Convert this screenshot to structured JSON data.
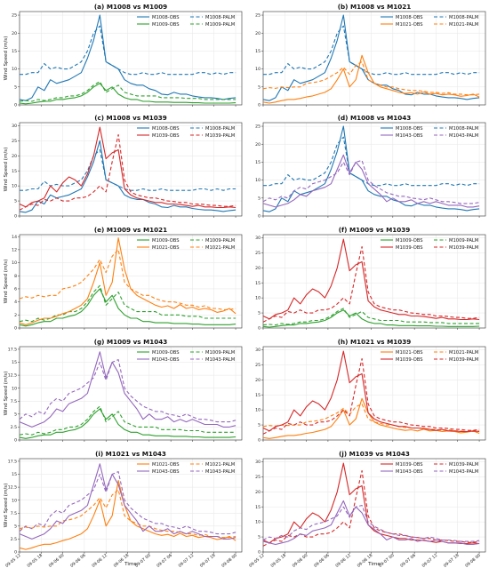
{
  "chart_data": {
    "type": "line",
    "ylabel": "Wind Speed (m/s)",
    "xlabel": "Time",
    "x_ticks": [
      "09-05 12",
      "09-05 18",
      "09-06 00",
      "09-06 06",
      "09-06 12",
      "09-06 18",
      "09-07 00",
      "09-07 06",
      "09-07 12",
      "09-07 18",
      "09-08 00"
    ],
    "grid": true,
    "colors": {
      "M1008": "#1f77b4",
      "M1009": "#2ca02c",
      "M1021": "#ff7f0e",
      "M1039": "#d62728",
      "M1043": "#9467bd"
    },
    "stations": {
      "M1008": {
        "OBS": [
          1.5,
          1.2,
          2,
          5,
          4,
          7,
          6,
          6.5,
          7,
          8,
          9,
          13,
          18,
          25,
          12,
          11,
          10,
          7,
          6,
          5.5,
          5.5,
          4.5,
          4,
          3,
          2.8,
          3.5,
          3,
          3,
          2.5,
          2.2,
          2,
          2,
          1.8,
          1.5,
          1.8,
          2
        ],
        "PALM": [
          8.5,
          8.5,
          9,
          9,
          11.5,
          10,
          10.5,
          10,
          10,
          11,
          12,
          15,
          20,
          22,
          12,
          11,
          10,
          9,
          8.5,
          8.5,
          9,
          8.5,
          8.5,
          9,
          8.5,
          8.5,
          8.5,
          8.5,
          8.5,
          9,
          9,
          8.5,
          9,
          8.5,
          9,
          9
        ]
      },
      "M1009": {
        "OBS": [
          0.5,
          0.3,
          0.5,
          0.8,
          1,
          1,
          1.5,
          1.5,
          1.8,
          2,
          2.5,
          3.5,
          5,
          6,
          4,
          5,
          3,
          2,
          1.5,
          1.5,
          1,
          1,
          0.8,
          0.8,
          0.8,
          0.7,
          0.7,
          0.7,
          0.6,
          0.6,
          0.5,
          0.5,
          0.5,
          0.5,
          0.5,
          0.6
        ],
        "PALM": [
          1,
          1.2,
          1,
          1.5,
          1.2,
          1.5,
          2,
          2,
          2.5,
          2.5,
          3,
          4,
          5.5,
          6.5,
          3.5,
          4.5,
          5.5,
          3.5,
          3,
          2.5,
          2.5,
          2.5,
          2.5,
          2,
          2,
          2,
          2,
          1.8,
          1.8,
          1.8,
          1.5,
          1.5,
          1.5,
          1.5,
          1.5,
          1.5
        ]
      },
      "M1021": {
        "OBS": [
          0.8,
          0.5,
          0.8,
          1.2,
          1.5,
          1.5,
          1.8,
          2.2,
          2.5,
          3,
          3.5,
          4.5,
          7,
          10,
          5,
          7,
          13.8,
          9,
          6,
          5,
          4.5,
          4,
          3.5,
          3.2,
          3.4,
          3,
          3.6,
          3,
          3.2,
          2.8,
          3,
          2.8,
          2.4,
          2.6,
          3,
          2.2
        ],
        "PALM": [
          4.5,
          4.8,
          4.6,
          5,
          4.8,
          5,
          5,
          6,
          6.2,
          6.5,
          7,
          8,
          9,
          10.5,
          8.5,
          11,
          12,
          7,
          6,
          5.5,
          5,
          5,
          4.5,
          4.2,
          4,
          4,
          3.8,
          3.5,
          3.5,
          3.2,
          3.4,
          3,
          3,
          2.8,
          2.8,
          3
        ]
      },
      "M1039": {
        "OBS": [
          4,
          3,
          4.5,
          5,
          6,
          10,
          8,
          11,
          13,
          12,
          10,
          14,
          20,
          29.5,
          19,
          21,
          22,
          9,
          7,
          6,
          5.5,
          5,
          4.5,
          4.5,
          4,
          4,
          3.8,
          3.5,
          3.2,
          3.5,
          3,
          3,
          2.8,
          2.8,
          3,
          2.8
        ],
        "PALM": [
          2,
          3,
          4,
          3.5,
          5.5,
          5,
          6,
          5,
          5,
          6,
          6,
          6.5,
          8,
          10,
          8,
          18,
          27,
          12,
          8,
          7,
          6.5,
          6,
          6,
          5.5,
          5,
          4.8,
          4.5,
          4.5,
          4,
          4,
          3.8,
          3.5,
          3.5,
          3.2,
          3.2,
          3.5
        ]
      },
      "M1043": {
        "OBS": [
          3.5,
          3,
          2.5,
          3,
          3.5,
          4.5,
          6,
          5.5,
          7,
          7.5,
          8,
          9,
          13,
          17,
          12,
          15,
          13,
          9,
          7.5,
          6,
          4,
          5,
          4,
          4,
          4.5,
          3.5,
          4,
          3.5,
          4,
          3.5,
          3,
          3,
          3,
          2.5,
          2.5,
          2.8
        ],
        "PALM": [
          4,
          5,
          4.5,
          5.5,
          5,
          7,
          8,
          7.5,
          9,
          9.5,
          10,
          11,
          12,
          15,
          11.5,
          15,
          15.5,
          10,
          8.5,
          7.5,
          6.5,
          6,
          5.5,
          5.5,
          5,
          4.8,
          4.5,
          5,
          4.5,
          4,
          4,
          3.8,
          3.5,
          3.5,
          3.5,
          3.8
        ]
      }
    },
    "panels": [
      {
        "title": "(a) M1008 vs M1009",
        "pair": [
          "M1008",
          "M1009"
        ],
        "ylim": [
          0,
          26
        ],
        "yticks": [
          0,
          5,
          10,
          15,
          20,
          25
        ]
      },
      {
        "title": "(b) M1008 vs M1021",
        "pair": [
          "M1008",
          "M1021"
        ],
        "ylim": [
          0,
          26
        ],
        "yticks": [
          0,
          5,
          10,
          15,
          20,
          25
        ]
      },
      {
        "title": "(c) M1008 vs M1039",
        "pair": [
          "M1008",
          "M1039"
        ],
        "ylim": [
          0,
          31
        ],
        "yticks": [
          0,
          5,
          10,
          15,
          20,
          25,
          30
        ]
      },
      {
        "title": "(d) M1008 vs M1043",
        "pair": [
          "M1008",
          "M1043"
        ],
        "ylim": [
          0,
          26
        ],
        "yticks": [
          0,
          5,
          10,
          15,
          20,
          25
        ]
      },
      {
        "title": "(e) M1009 vs M1021",
        "pair": [
          "M1009",
          "M1021"
        ],
        "ylim": [
          0,
          14.3
        ],
        "yticks": [
          0,
          2,
          4,
          6,
          8,
          10,
          12,
          14
        ]
      },
      {
        "title": "(f) M1009 vs M1039",
        "pair": [
          "M1009",
          "M1039"
        ],
        "ylim": [
          0,
          31
        ],
        "yticks": [
          0,
          5,
          10,
          15,
          20,
          25,
          30
        ]
      },
      {
        "title": "(g) M1009 vs M1043",
        "pair": [
          "M1009",
          "M1043"
        ],
        "ylim": [
          0,
          18
        ],
        "yticks": [
          0,
          2.5,
          5,
          7.5,
          10,
          12.5,
          15,
          17.5
        ]
      },
      {
        "title": "(h) M1021 vs M1039",
        "pair": [
          "M1021",
          "M1039"
        ],
        "ylim": [
          0,
          31
        ],
        "yticks": [
          0,
          5,
          10,
          15,
          20,
          25,
          30
        ]
      },
      {
        "title": "(i) M1021 vs M1043",
        "pair": [
          "M1021",
          "M1043"
        ],
        "ylim": [
          0,
          18
        ],
        "yticks": [
          0,
          2.5,
          5,
          7.5,
          10,
          12.5,
          15,
          17.5
        ]
      },
      {
        "title": "(j) M1039 vs M1043",
        "pair": [
          "M1039",
          "M1043"
        ],
        "ylim": [
          0,
          31
        ],
        "yticks": [
          0,
          5,
          10,
          15,
          20,
          25,
          30
        ]
      }
    ]
  }
}
